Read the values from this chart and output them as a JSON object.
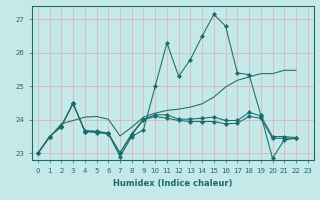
{
  "xlabel": "Humidex (Indice chaleur)",
  "bg_color": "#c5e8e8",
  "grid_color": "#dbb8b8",
  "line_color": "#1a6b6b",
  "xlim": [
    -0.5,
    23.5
  ],
  "ylim": [
    22.8,
    27.4
  ],
  "yticks": [
    23,
    24,
    25,
    26,
    27
  ],
  "xticks": [
    0,
    1,
    2,
    3,
    4,
    5,
    6,
    7,
    8,
    9,
    10,
    11,
    12,
    13,
    14,
    15,
    16,
    17,
    18,
    19,
    20,
    21,
    22,
    23
  ],
  "line1": [
    23.0,
    23.5,
    23.8,
    24.5,
    23.65,
    23.65,
    23.6,
    22.9,
    23.5,
    23.7,
    25.0,
    26.3,
    25.3,
    25.8,
    26.5,
    27.15,
    26.8,
    25.4,
    25.35,
    24.15,
    22.85,
    23.4,
    23.45
  ],
  "line2": [
    23.0,
    23.5,
    23.8,
    24.5,
    23.65,
    23.62,
    23.58,
    23.0,
    23.55,
    24.0,
    24.1,
    24.05,
    23.98,
    23.95,
    23.95,
    23.95,
    23.88,
    23.9,
    24.1,
    24.05,
    23.45,
    23.45,
    23.45
  ],
  "line3": [
    23.0,
    23.5,
    23.82,
    24.48,
    23.68,
    23.66,
    23.6,
    23.02,
    23.58,
    24.02,
    24.15,
    24.15,
    24.02,
    24.02,
    24.05,
    24.08,
    23.98,
    23.98,
    24.22,
    24.12,
    23.5,
    23.5,
    23.47
  ],
  "line4": [
    23.0,
    23.48,
    23.88,
    23.98,
    24.08,
    24.1,
    24.02,
    23.52,
    23.78,
    24.08,
    24.2,
    24.28,
    24.32,
    24.38,
    24.48,
    24.68,
    24.98,
    25.18,
    25.28,
    25.38,
    25.38,
    25.48,
    25.48
  ]
}
